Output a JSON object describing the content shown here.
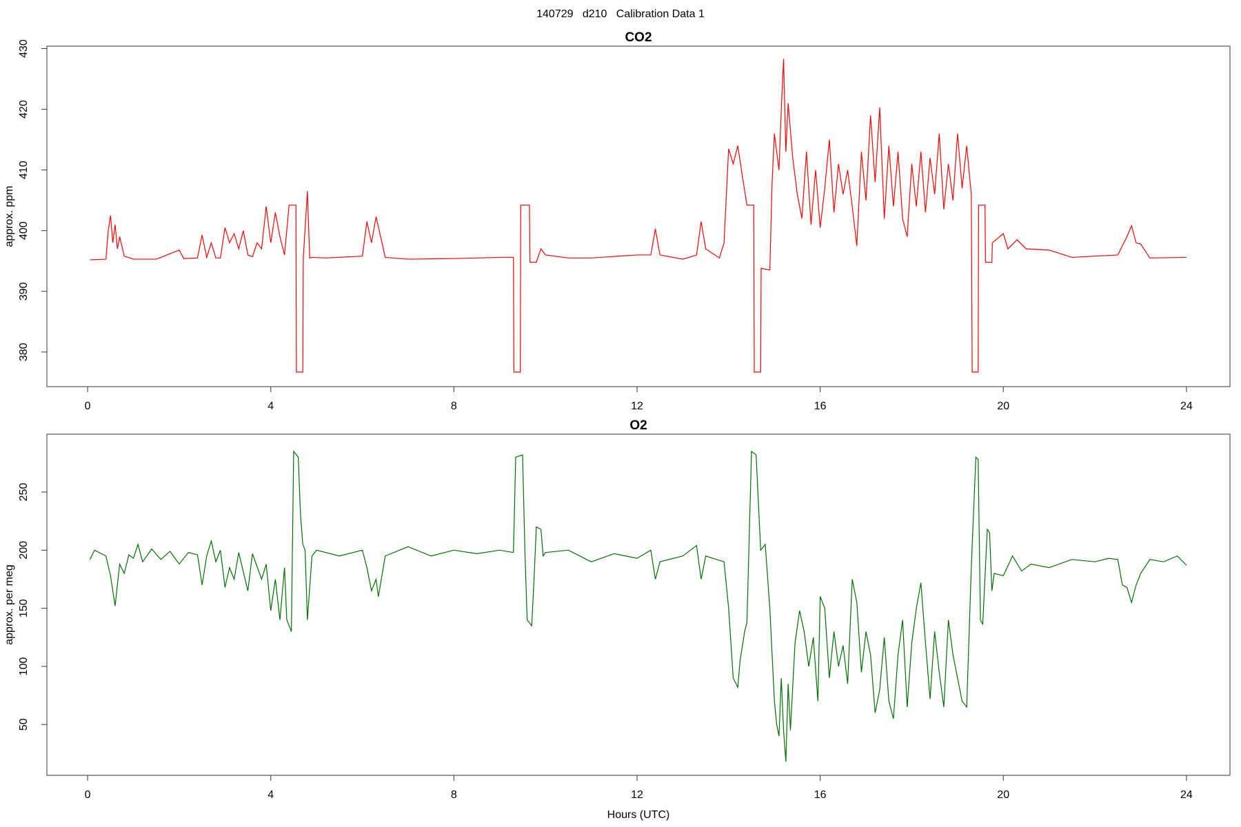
{
  "title": "140729   d210   Calibration Data 1",
  "chart_data": [
    {
      "type": "line",
      "title": "CO2",
      "ylabel": "approx. ppm",
      "color": "#ff0000",
      "xlim": [
        -0.89,
        24.95
      ],
      "ylim": [
        374.3,
        430.4
      ],
      "xticks": [
        0,
        4,
        8,
        12,
        16,
        20,
        24
      ],
      "yticks": [
        380,
        390,
        400,
        410,
        420,
        430
      ],
      "x": [
        0.05,
        0.4,
        0.45,
        0.5,
        0.55,
        0.6,
        0.65,
        0.7,
        0.8,
        1.0,
        1.5,
        1.7,
        2.0,
        2.1,
        2.4,
        2.5,
        2.6,
        2.7,
        2.8,
        2.9,
        3.0,
        3.1,
        3.2,
        3.3,
        3.4,
        3.5,
        3.6,
        3.7,
        3.8,
        3.9,
        4.0,
        4.1,
        4.2,
        4.3,
        4.4,
        4.55,
        4.56,
        4.7,
        4.71,
        4.8,
        4.85,
        4.9,
        5.2,
        6.0,
        6.1,
        6.2,
        6.3,
        6.4,
        6.5,
        7.0,
        8.0,
        9.0,
        9.3,
        9.31,
        9.45,
        9.46,
        9.65,
        9.66,
        9.8,
        9.9,
        10.0,
        10.5,
        11.0,
        12.0,
        12.3,
        12.4,
        12.5,
        13.0,
        13.3,
        13.4,
        13.5,
        13.8,
        13.9,
        14.0,
        14.1,
        14.2,
        14.3,
        14.4,
        14.55,
        14.56,
        14.7,
        14.71,
        14.9,
        14.95,
        15.0,
        15.1,
        15.15,
        15.2,
        15.25,
        15.3,
        15.4,
        15.5,
        15.6,
        15.7,
        15.8,
        15.9,
        16.0,
        16.1,
        16.2,
        16.3,
        16.4,
        16.5,
        16.6,
        16.7,
        16.8,
        16.9,
        17.0,
        17.1,
        17.2,
        17.3,
        17.4,
        17.5,
        17.6,
        17.7,
        17.8,
        17.9,
        18.0,
        18.1,
        18.2,
        18.3,
        18.4,
        18.5,
        18.6,
        18.7,
        18.8,
        18.9,
        19.0,
        19.1,
        19.2,
        19.3,
        19.32,
        19.45,
        19.46,
        19.6,
        19.61,
        19.75,
        19.76,
        20.0,
        20.1,
        20.3,
        20.5,
        21.0,
        21.5,
        22.0,
        22.5,
        22.7,
        22.8,
        22.9,
        23.0,
        23.2,
        24.0
      ],
      "values": [
        395.2,
        395.3,
        400,
        402.5,
        398,
        401,
        397,
        399,
        395.8,
        395.3,
        395.3,
        395.9,
        396.8,
        395.4,
        395.5,
        399.3,
        395.6,
        398,
        395.5,
        395.5,
        400.5,
        398,
        399.5,
        397,
        400,
        396,
        395.7,
        398,
        397,
        404,
        398,
        403,
        399,
        396,
        404.2,
        404.2,
        376.7,
        376.7,
        395.5,
        406.5,
        395.5,
        395.6,
        395.5,
        395.8,
        401.5,
        398,
        402.3,
        399,
        395.6,
        395.3,
        395.4,
        395.6,
        395.6,
        376.7,
        376.7,
        404.2,
        404.2,
        394.8,
        394.8,
        397,
        396,
        395.5,
        395.5,
        396,
        396,
        400.3,
        396,
        395.3,
        396,
        401.5,
        397,
        395.5,
        398,
        413.5,
        411,
        414,
        409,
        404.2,
        404.2,
        376.7,
        376.7,
        393.8,
        393.5,
        408,
        416,
        410,
        420,
        428.3,
        413,
        421,
        412,
        406,
        402,
        413,
        401,
        410,
        400.5,
        407,
        415,
        403,
        411,
        406,
        410,
        404,
        397.5,
        413,
        405,
        419,
        408,
        420.3,
        402,
        414,
        404,
        413,
        402,
        399,
        411,
        404,
        413,
        403,
        412,
        406,
        416,
        403.5,
        411,
        405,
        416,
        407,
        414,
        406,
        376.7,
        376.7,
        404.2,
        404.2,
        394.8,
        394.8,
        398,
        399.5,
        397,
        398.5,
        397,
        396.8,
        395.6,
        395.8,
        396,
        399,
        400.8,
        398,
        397.8,
        395.5,
        395.6
      ]
    },
    {
      "type": "line",
      "title": "O2",
      "ylabel": "approx. per meg",
      "xlabel": "Hours (UTC)",
      "color": "#007000",
      "xlim": [
        -0.89,
        24.95
      ],
      "ylim": [
        6.3,
        299.8
      ],
      "xticks": [
        0,
        4,
        8,
        12,
        16,
        20,
        24
      ],
      "yticks": [
        50,
        100,
        150,
        200,
        250
      ],
      "x": [
        0.05,
        0.15,
        0.3,
        0.4,
        0.5,
        0.6,
        0.7,
        0.8,
        0.9,
        1.0,
        1.1,
        1.2,
        1.4,
        1.6,
        1.8,
        2.0,
        2.2,
        2.4,
        2.5,
        2.6,
        2.7,
        2.8,
        2.9,
        3.0,
        3.1,
        3.2,
        3.3,
        3.5,
        3.6,
        3.8,
        3.9,
        4.0,
        4.1,
        4.2,
        4.3,
        4.35,
        4.45,
        4.5,
        4.6,
        4.65,
        4.7,
        4.75,
        4.8,
        4.9,
        5.0,
        5.5,
        6.0,
        6.1,
        6.2,
        6.3,
        6.35,
        6.5,
        7.0,
        7.5,
        8.0,
        8.5,
        9.0,
        9.3,
        9.35,
        9.5,
        9.55,
        9.6,
        9.7,
        9.75,
        9.8,
        9.9,
        9.95,
        10.0,
        10.5,
        11.0,
        11.5,
        12.0,
        12.3,
        12.4,
        12.5,
        13.0,
        13.3,
        13.4,
        13.5,
        13.9,
        14.0,
        14.1,
        14.2,
        14.25,
        14.35,
        14.4,
        14.5,
        14.6,
        14.7,
        14.8,
        14.9,
        15.0,
        15.05,
        15.1,
        15.15,
        15.2,
        15.25,
        15.3,
        15.35,
        15.45,
        15.55,
        15.65,
        15.75,
        15.85,
        15.95,
        16.0,
        16.1,
        16.2,
        16.3,
        16.4,
        16.5,
        16.6,
        16.7,
        16.8,
        16.9,
        17.0,
        17.1,
        17.2,
        17.3,
        17.4,
        17.5,
        17.6,
        17.7,
        17.8,
        17.9,
        18.0,
        18.1,
        18.2,
        18.3,
        18.4,
        18.5,
        18.6,
        18.7,
        18.8,
        18.9,
        19.0,
        19.1,
        19.2,
        19.3,
        19.4,
        19.45,
        19.5,
        19.55,
        19.65,
        19.7,
        19.75,
        19.8,
        20.0,
        20.2,
        20.4,
        20.6,
        21.0,
        21.5,
        22.0,
        22.3,
        22.5,
        22.6,
        22.7,
        22.8,
        22.9,
        23.0,
        23.2,
        23.5,
        23.8,
        24.0
      ],
      "values": [
        192,
        200,
        197,
        195,
        178,
        152,
        188,
        180,
        196,
        193,
        205,
        190,
        201,
        192,
        199,
        188,
        198,
        196,
        170,
        195,
        208,
        190,
        200,
        168,
        185,
        175,
        198,
        165,
        197,
        175,
        188,
        148,
        175,
        140,
        185,
        140,
        130,
        285,
        280,
        230,
        205,
        200,
        140,
        195,
        200,
        195,
        200,
        185,
        165,
        175,
        160,
        195,
        203,
        195,
        200,
        197,
        200,
        198,
        280,
        282,
        200,
        140,
        135,
        175,
        220,
        218,
        195,
        198,
        200,
        190,
        197,
        193,
        200,
        175,
        190,
        195,
        204,
        175,
        195,
        190,
        150,
        90,
        82,
        105,
        130,
        138,
        285,
        282,
        200,
        205,
        150,
        70,
        50,
        40,
        90,
        45,
        18,
        85,
        45,
        120,
        148,
        130,
        100,
        125,
        70,
        160,
        150,
        90,
        130,
        100,
        118,
        85,
        175,
        155,
        95,
        130,
        110,
        60,
        80,
        125,
        70,
        55,
        110,
        140,
        65,
        120,
        150,
        172,
        120,
        72,
        130,
        95,
        65,
        140,
        110,
        90,
        70,
        65,
        185,
        280,
        278,
        140,
        136,
        218,
        215,
        165,
        180,
        178,
        195,
        182,
        188,
        185,
        192,
        190,
        193,
        192,
        170,
        168,
        155,
        170,
        180,
        192,
        190,
        195,
        187
      ]
    }
  ]
}
